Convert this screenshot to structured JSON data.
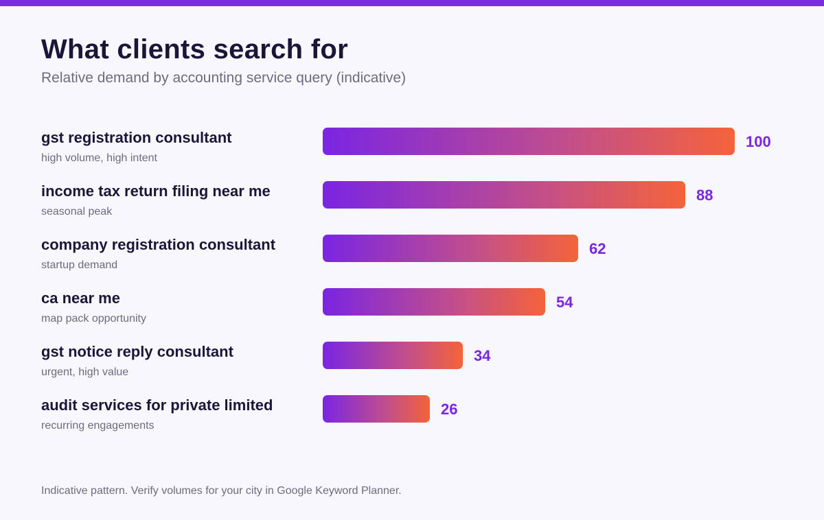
{
  "header": {
    "title": "What clients search for",
    "subtitle": "Relative demand by accounting service query (indicative)"
  },
  "chart_data": {
    "type": "bar",
    "orientation": "horizontal",
    "categories": [
      "gst registration consultant",
      "income tax return filing near me",
      "company registration consultant",
      "ca near me",
      "gst notice reply consultant",
      "audit services for private limited"
    ],
    "notes": [
      "high volume, high intent",
      "seasonal peak",
      "startup demand",
      "map pack opportunity",
      "urgent, high value",
      "recurring engagements"
    ],
    "values": [
      100,
      88,
      62,
      54,
      34,
      26
    ],
    "xlim": [
      0,
      100
    ],
    "title": "What clients search for",
    "subtitle": "Relative demand by accounting service query (indicative)",
    "colors": {
      "gradient_start": "#7a25e3",
      "gradient_end": "#f5633a",
      "value_label": "#7a25e3"
    },
    "grid": false,
    "legend": "none"
  },
  "footer": {
    "note": "Indicative pattern. Verify volumes for your city in Google Keyword Planner."
  }
}
